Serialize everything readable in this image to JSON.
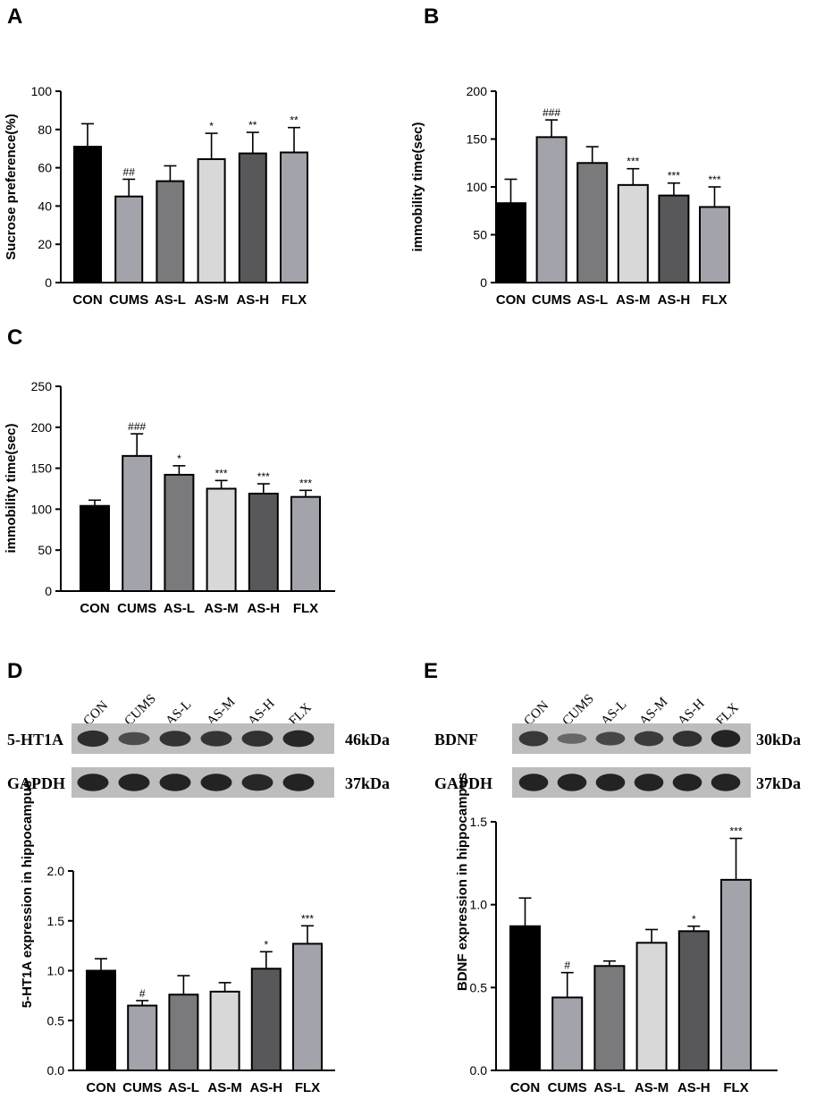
{
  "colors": {
    "CON": "#000000",
    "CUMS": "#a3a3ab",
    "AS-L": "#7a7a7c",
    "AS-M": "#d8d8d8",
    "AS-H": "#58585a",
    "FLX": "#a3a3ab",
    "axis": "#000000",
    "blot_band": "#1e1e1e",
    "blot_bg": "#bdbdbd"
  },
  "blots": {
    "D": {
      "lanes": [
        "CON",
        "CUMS",
        "AS-L",
        "AS-M",
        "AS-H",
        "FLX"
      ],
      "rows": [
        {
          "label": "5-HT1A",
          "size": "46kDa",
          "intensity": [
            0.85,
            0.55,
            0.8,
            0.78,
            0.82,
            0.9
          ]
        },
        {
          "label": "GAPDH",
          "size": "37kDa",
          "intensity": [
            0.95,
            0.95,
            0.95,
            0.95,
            0.9,
            0.95
          ]
        }
      ]
    },
    "E": {
      "lanes": [
        "CON",
        "CUMS",
        "AS-L",
        "AS-M",
        "AS-H",
        "FLX"
      ],
      "rows": [
        {
          "label": "BDNF",
          "size": "30kDa",
          "intensity": [
            0.75,
            0.3,
            0.6,
            0.72,
            0.82,
            0.95
          ]
        },
        {
          "label": "GAPDH",
          "size": "37kDa",
          "intensity": [
            0.95,
            0.95,
            0.95,
            0.95,
            0.95,
            0.95
          ]
        }
      ]
    }
  },
  "chart_data": [
    {
      "panel": "A",
      "type": "bar",
      "categories": [
        "CON",
        "CUMS",
        "AS-L",
        "AS-M",
        "AS-H",
        "FLX"
      ],
      "values": [
        71,
        45,
        53,
        64.5,
        67.5,
        68
      ],
      "errors": [
        12,
        9,
        8,
        13.5,
        11,
        13
      ],
      "annotations": [
        "",
        "##",
        "",
        "*",
        "**",
        "**"
      ],
      "ylabel": "Sucrose preference(%)",
      "ylim": [
        0,
        100
      ],
      "yticks": [
        0,
        20,
        40,
        60,
        80,
        100
      ]
    },
    {
      "panel": "B",
      "type": "bar",
      "categories": [
        "CON",
        "CUMS",
        "AS-L",
        "AS-M",
        "AS-H",
        "FLX"
      ],
      "values": [
        83,
        152,
        125,
        102,
        91,
        79
      ],
      "errors": [
        25,
        18,
        17,
        17,
        13,
        21
      ],
      "annotations": [
        "",
        "###",
        "",
        "***",
        "***",
        "***"
      ],
      "ylabel": "immobility time(sec)",
      "ylim": [
        0,
        200
      ],
      "yticks": [
        0,
        50,
        100,
        150,
        200
      ]
    },
    {
      "panel": "C",
      "type": "bar",
      "categories": [
        "CON",
        "CUMS",
        "AS-L",
        "AS-M",
        "AS-H",
        "FLX"
      ],
      "values": [
        104,
        165,
        142,
        125,
        119,
        115
      ],
      "errors": [
        7,
        27,
        11,
        10,
        12,
        8
      ],
      "annotations": [
        "",
        "###",
        "*",
        "***",
        "***",
        "***"
      ],
      "ylabel": "immobility time(sec)",
      "ylim": [
        0,
        250
      ],
      "yticks": [
        0,
        50,
        100,
        150,
        200,
        250
      ]
    },
    {
      "panel": "D",
      "type": "bar",
      "categories": [
        "CON",
        "CUMS",
        "AS-L",
        "AS-M",
        "AS-H",
        "FLX"
      ],
      "values": [
        1.0,
        0.65,
        0.76,
        0.79,
        1.02,
        1.27
      ],
      "errors": [
        0.12,
        0.05,
        0.19,
        0.09,
        0.17,
        0.18
      ],
      "annotations": [
        "",
        "#",
        "",
        "",
        "*",
        "***"
      ],
      "ylabel": "5-HT1A expression in hippocampus",
      "ylim": [
        0,
        2.0
      ],
      "yticks": [
        "0.0",
        "0.5",
        "1.0",
        "1.5",
        "2.0"
      ]
    },
    {
      "panel": "E",
      "type": "bar",
      "categories": [
        "CON",
        "CUMS",
        "AS-L",
        "AS-M",
        "AS-H",
        "FLX"
      ],
      "values": [
        0.87,
        0.44,
        0.63,
        0.77,
        0.84,
        1.15
      ],
      "errors": [
        0.17,
        0.15,
        0.03,
        0.08,
        0.03,
        0.25
      ],
      "annotations": [
        "",
        "#",
        "",
        "",
        "*",
        "***"
      ],
      "ylabel": "BDNF expression in hippocampus",
      "ylim": [
        0,
        1.5
      ],
      "yticks": [
        "0.0",
        "0.5",
        "1.0",
        "1.5"
      ]
    }
  ]
}
